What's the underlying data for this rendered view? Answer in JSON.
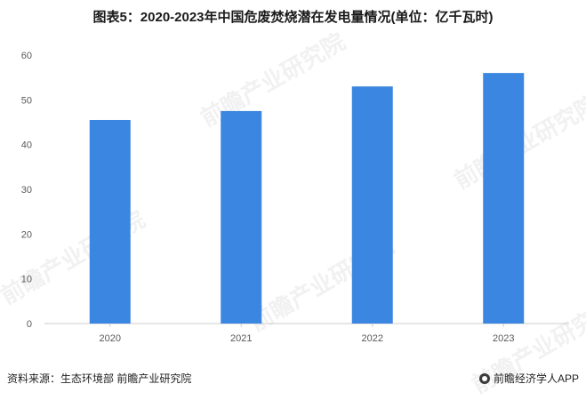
{
  "title": "图表5：2020-2023年中国危废焚烧潜在发电量情况(单位：亿千瓦时)",
  "footer": {
    "source": "资料来源：生态环境部 前瞻产业研究院",
    "brand": "前瞻经济学人APP"
  },
  "watermark": "前瞻产业研究院",
  "colors": {
    "bar": "#3b86e0",
    "axis": "#cccccc",
    "grid": "#d9d9d9",
    "text": "#595959"
  },
  "chart_data": {
    "type": "bar",
    "categories": [
      "2020",
      "2021",
      "2022",
      "2023"
    ],
    "values": [
      45.5,
      47.5,
      53,
      56
    ],
    "title": "图表5：2020-2023年中国危废焚烧潜在发电量情况(单位：亿千瓦时)",
    "xlabel": "",
    "ylabel": "",
    "ylim": [
      0,
      60
    ],
    "yticks": [
      0,
      10,
      20,
      30,
      40,
      50,
      60
    ],
    "grid": false,
    "legend": "none"
  }
}
